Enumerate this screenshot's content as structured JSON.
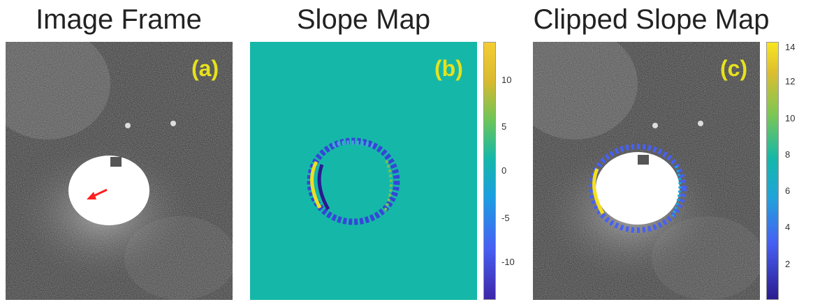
{
  "titles": {
    "a": "Image Frame",
    "b": "Slope Map",
    "c": "Clipped Slope Map"
  },
  "labels": {
    "a": "(a)",
    "b": "(b)",
    "c": "(c)"
  },
  "colorbar_b": {
    "ticks": [
      "10",
      "5",
      "0",
      "-5",
      "-10"
    ],
    "range": [
      -14,
      14
    ]
  },
  "colorbar_c": {
    "ticks": [
      "14",
      "12",
      "10",
      "8",
      "6",
      "4",
      "2"
    ],
    "range": [
      0,
      14
    ]
  },
  "colors": {
    "background_map": "#15b8a8",
    "label_yellow": "#e6e21c",
    "arrow": "#ff2020"
  }
}
